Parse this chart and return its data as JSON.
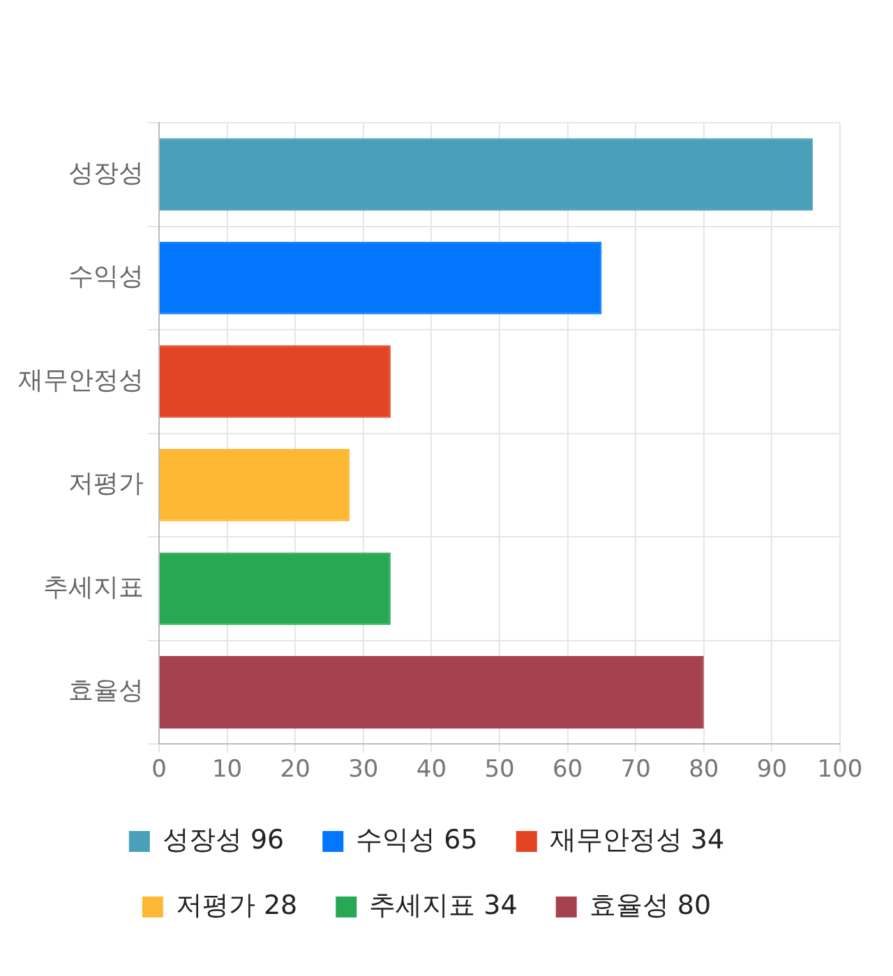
{
  "chart_data": {
    "type": "bar",
    "orientation": "horizontal",
    "categories": [
      "성장성",
      "수익성",
      "재무안정성",
      "저평가",
      "추세지표",
      "효율성"
    ],
    "series": [
      {
        "name": "성장성 96",
        "color": "#4aa0b8",
        "values": [
          96,
          null,
          null,
          null,
          null,
          null
        ]
      },
      {
        "name": "수익성 65",
        "color": "#0277fe",
        "values": [
          null,
          65,
          null,
          null,
          null,
          null
        ]
      },
      {
        "name": "재무안정성 34",
        "color": "#e34424",
        "values": [
          null,
          null,
          34,
          null,
          null,
          null
        ]
      },
      {
        "name": "저평가 28",
        "color": "#ffb833",
        "values": [
          null,
          null,
          null,
          28,
          null,
          null
        ]
      },
      {
        "name": "추세지표 34",
        "color": "#29a853",
        "values": [
          null,
          null,
          null,
          null,
          34,
          null
        ]
      },
      {
        "name": "효율성 80",
        "color": "#a6414f",
        "values": [
          null,
          null,
          null,
          null,
          null,
          80
        ]
      }
    ],
    "xlim": [
      0,
      100
    ],
    "xticks": [
      0,
      10,
      20,
      30,
      40,
      50,
      60,
      70,
      80,
      90,
      100
    ],
    "grid": true,
    "legend": "bottom"
  }
}
